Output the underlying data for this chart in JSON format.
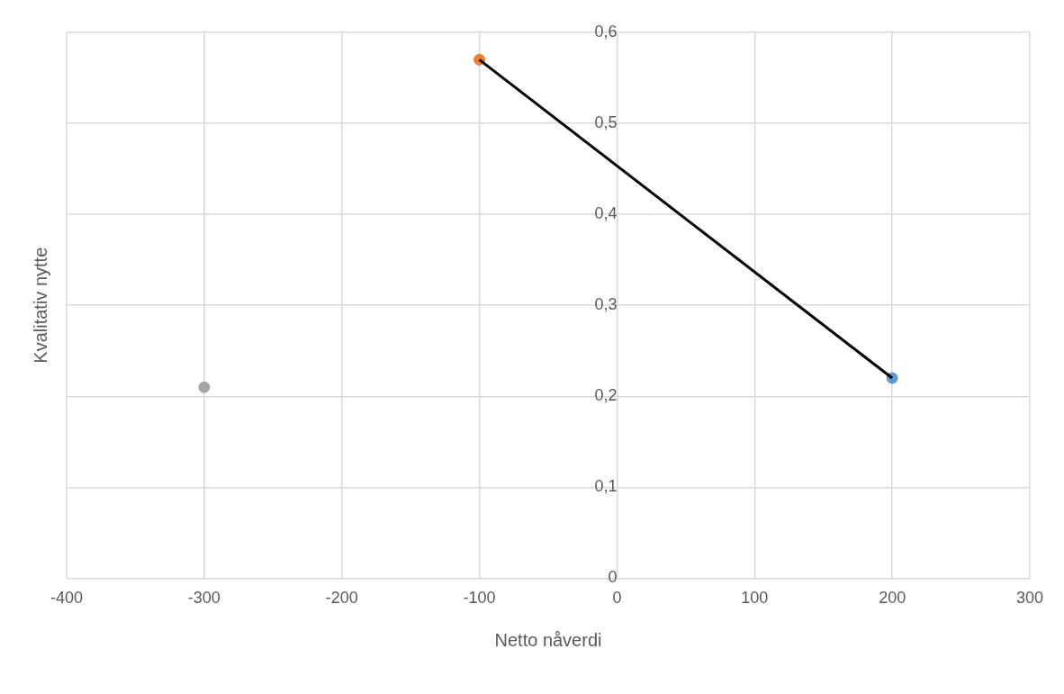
{
  "chart_data": {
    "type": "scatter",
    "xlabel": "Netto nåverdi",
    "ylabel": "Kvalitativ nytte",
    "series": [
      {
        "type": "scatter",
        "color": "#a5a5a5",
        "x": [
          -300
        ],
        "values": [
          0.21
        ],
        "marker": "circle"
      },
      {
        "type": "scatter",
        "color": "#ed7d31",
        "x": [
          -100
        ],
        "values": [
          0.57
        ],
        "marker": "circle"
      },
      {
        "type": "scatter",
        "color": "#5b9bd5",
        "x": [
          200
        ],
        "values": [
          0.22
        ],
        "marker": "circle"
      },
      {
        "type": "line",
        "color": "#000000",
        "x": [
          -100,
          200
        ],
        "values": [
          0.57,
          0.22
        ],
        "marker": "none"
      }
    ],
    "xlim": [
      -400,
      300
    ],
    "xticks": [
      -400,
      -300,
      -200,
      -100,
      0,
      100,
      200,
      300
    ],
    "ylim": [
      0,
      0.6
    ],
    "yticks": [
      0,
      {
        "value": 0.1,
        "label": "0,1"
      },
      {
        "value": 0.2,
        "label": "0,2"
      },
      {
        "value": 0.3,
        "label": "0,3"
      },
      {
        "value": 0.4,
        "label": "0,4"
      },
      {
        "value": 0.5,
        "label": "0,5"
      },
      {
        "value": 0.6,
        "label": "0,6"
      }
    ],
    "grid": true,
    "legend": false
  }
}
